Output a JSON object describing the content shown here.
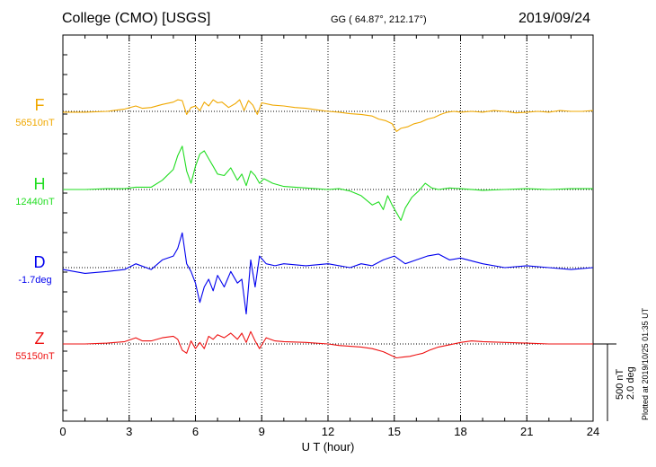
{
  "header": {
    "station": "College (CMO)  [USGS]",
    "coords": "GG ( 64.87°, 212.17°)",
    "date": "2019/09/24"
  },
  "plotted_note": "Plotted at 2019/10/25 01:35 UT",
  "scale": {
    "nt": "500 nT",
    "deg": "2.0 deg"
  },
  "chart_data": {
    "type": "line",
    "xlabel": "U T (hour)",
    "xlim": [
      0,
      24
    ],
    "xticks": [
      "0",
      "3",
      "6",
      "9",
      "12",
      "15",
      "18",
      "21",
      "24"
    ],
    "scale_nT": 500,
    "scale_deg": 2.0,
    "grid": true,
    "series": [
      {
        "name": "F",
        "baseline_label": "56510nT",
        "color": "#f0a800",
        "units": "nT",
        "x": [
          0,
          1,
          2,
          2.8,
          3.3,
          3.6,
          4,
          4.5,
          5,
          5.2,
          5.4,
          5.6,
          5.8,
          6.0,
          6.2,
          6.4,
          6.6,
          6.8,
          7.0,
          7.2,
          7.5,
          7.8,
          8.0,
          8.2,
          8.4,
          8.6,
          8.8,
          9.0,
          9.5,
          10,
          10.5,
          11,
          11.5,
          12,
          12.5,
          13,
          13.5,
          14,
          14.3,
          14.6,
          14.9,
          15.1,
          15.3,
          15.6,
          15.9,
          16.2,
          16.5,
          16.8,
          17.1,
          17.4,
          17.7,
          18,
          18.5,
          19,
          19.5,
          20,
          20.5,
          21,
          21.5,
          22,
          22.5,
          23,
          23.5,
          24
        ],
        "values": [
          -5,
          -5,
          0,
          15,
          35,
          20,
          25,
          45,
          60,
          75,
          70,
          -20,
          25,
          35,
          5,
          60,
          35,
          75,
          55,
          60,
          25,
          50,
          75,
          5,
          70,
          40,
          -20,
          55,
          40,
          35,
          25,
          20,
          10,
          0,
          -5,
          -15,
          -20,
          -30,
          -50,
          -60,
          -80,
          -130,
          -110,
          -100,
          -80,
          -70,
          -50,
          -40,
          -20,
          -5,
          0,
          -5,
          0,
          -5,
          5,
          0,
          -10,
          -5,
          0,
          -5,
          5,
          0,
          0,
          5
        ]
      },
      {
        "name": "H",
        "baseline_label": "12440nT",
        "color": "#22dd22",
        "units": "nT",
        "x": [
          0,
          1,
          2,
          2.8,
          3.3,
          4,
          4.5,
          5,
          5.2,
          5.4,
          5.6,
          5.8,
          6.0,
          6.2,
          6.4,
          6.6,
          6.8,
          7.0,
          7.3,
          7.6,
          7.9,
          8.1,
          8.3,
          8.5,
          8.7,
          8.9,
          9.1,
          9.5,
          10,
          11,
          12,
          12.5,
          13,
          13.5,
          14,
          14.3,
          14.5,
          14.7,
          14.9,
          15.1,
          15.3,
          15.5,
          15.8,
          16.1,
          16.4,
          16.7,
          17,
          17.5,
          18,
          19,
          20,
          21,
          22,
          23,
          24
        ],
        "values": [
          0,
          0,
          5,
          5,
          15,
          15,
          60,
          130,
          220,
          280,
          120,
          40,
          150,
          230,
          250,
          200,
          150,
          100,
          90,
          140,
          60,
          100,
          25,
          120,
          90,
          40,
          70,
          40,
          20,
          10,
          0,
          5,
          -10,
          -40,
          -100,
          -80,
          -130,
          -40,
          -100,
          -150,
          -200,
          -120,
          -50,
          -10,
          40,
          10,
          0,
          10,
          5,
          -5,
          0,
          5,
          0,
          5,
          5
        ]
      },
      {
        "name": "D",
        "baseline_label": "-1.7deg",
        "color": "#0000ee",
        "units": "deg",
        "x": [
          0,
          1,
          2,
          2.8,
          3.3,
          4,
          4.5,
          5,
          5.2,
          5.4,
          5.6,
          5.8,
          6.0,
          6.2,
          6.4,
          6.6,
          6.8,
          7.0,
          7.3,
          7.6,
          7.9,
          8.1,
          8.3,
          8.5,
          8.7,
          8.9,
          9.2,
          9.6,
          10,
          11,
          12,
          13,
          13.5,
          14,
          14.5,
          15,
          15.5,
          16,
          16.5,
          17,
          17.5,
          18,
          19,
          20,
          21,
          22,
          23,
          24
        ],
        "values": [
          -0.05,
          -0.15,
          -0.1,
          -0.05,
          0.1,
          -0.05,
          0.2,
          0.3,
          0.5,
          0.9,
          0.1,
          -0.1,
          -0.4,
          -0.9,
          -0.5,
          -0.3,
          -0.6,
          -0.2,
          -0.5,
          -0.1,
          -0.4,
          -0.3,
          -1.2,
          0.2,
          -0.5,
          0.3,
          0.1,
          0.05,
          0.1,
          0.05,
          0.1,
          0.0,
          0.1,
          0.05,
          0.2,
          0.3,
          0.1,
          0.2,
          0.3,
          0.35,
          0.2,
          0.25,
          0.1,
          0.0,
          0.05,
          0.0,
          -0.05,
          0.0
        ]
      },
      {
        "name": "Z",
        "baseline_label": "55150nT",
        "color": "#ee1111",
        "units": "nT",
        "x": [
          0,
          1,
          2,
          2.8,
          3.3,
          3.6,
          4,
          4.5,
          5,
          5.2,
          5.4,
          5.6,
          5.8,
          6.0,
          6.2,
          6.4,
          6.6,
          6.8,
          7.0,
          7.3,
          7.6,
          7.9,
          8.1,
          8.3,
          8.5,
          8.7,
          8.9,
          9.2,
          9.6,
          10,
          11,
          12,
          12.5,
          13,
          13.5,
          14,
          14.5,
          14.8,
          15.1,
          15.4,
          15.7,
          16,
          16.3,
          16.6,
          17,
          17.5,
          18,
          18.5,
          19,
          20,
          21,
          22,
          23,
          24
        ],
        "values": [
          0,
          0,
          5,
          15,
          40,
          20,
          20,
          40,
          50,
          30,
          -40,
          -60,
          20,
          -30,
          10,
          -30,
          50,
          30,
          60,
          40,
          70,
          30,
          70,
          10,
          80,
          20,
          -30,
          40,
          20,
          15,
          10,
          0,
          -10,
          -15,
          -20,
          -30,
          -50,
          -70,
          -90,
          -85,
          -80,
          -70,
          -60,
          -40,
          -20,
          -5,
          10,
          20,
          15,
          10,
          5,
          0,
          0,
          0
        ]
      }
    ]
  }
}
